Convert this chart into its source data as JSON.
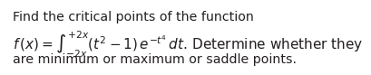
{
  "line1": "Find the critical points of the function",
  "line2": "$f\\,(x) = \\int_{-2x}^{+2x} (t^2 - 1)\\, e^{-t^4}\\, dt$. Determine whether they",
  "line3": "are minimum or maximum or saddle points.",
  "background_color": "#ffffff",
  "text_color": "#231f20",
  "fontsize_line1": 10.2,
  "fontsize_line2": 11.0,
  "fontsize_line3": 10.2
}
